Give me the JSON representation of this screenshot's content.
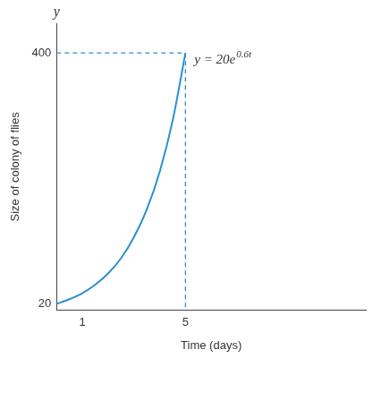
{
  "chart_data": {
    "type": "line",
    "ylabel": "Size of colony of flies",
    "xlabel": "Time (days)",
    "y_axis_name": "y",
    "annotation": {
      "text": "y = 20e",
      "exponent": "0.6t"
    },
    "x": [
      0,
      0.5,
      1,
      1.5,
      2,
      2.5,
      3,
      3.5,
      4,
      4.5,
      5
    ],
    "values": [
      20,
      27,
      36,
      49,
      66,
      89,
      121,
      163,
      220,
      297,
      400
    ],
    "color": "#2b8fd0",
    "guide_lines": [
      {
        "x": [
          0,
          5
        ],
        "values": [
          400,
          400
        ],
        "line_style": "dashed"
      },
      {
        "x": [
          5,
          5
        ],
        "values": [
          400,
          10
        ],
        "line_style": "dashed"
      }
    ],
    "xlim": [
      0,
      12
    ],
    "xticks": [
      1,
      5
    ],
    "ylim": [
      10,
      445
    ],
    "yticks": [
      20,
      400
    ],
    "grid": false
  }
}
